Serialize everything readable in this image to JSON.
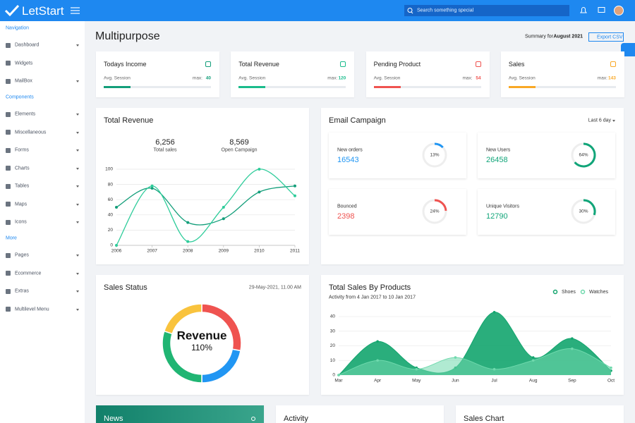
{
  "header": {
    "brand": "LetStart",
    "search_placeholder": "Search something special"
  },
  "sidebar": [
    {
      "heading": "Navigation",
      "items": [
        {
          "label": "Dashboard",
          "submenu": true
        },
        {
          "label": "Widgets",
          "submenu": false
        },
        {
          "label": "MailBox",
          "submenu": true
        }
      ]
    },
    {
      "heading": "Components",
      "items": [
        {
          "label": "Elements",
          "submenu": true
        },
        {
          "label": "Miscellaneous",
          "submenu": true
        },
        {
          "label": "Forms",
          "submenu": true
        },
        {
          "label": "Charts",
          "submenu": true
        },
        {
          "label": "Tables",
          "submenu": true
        },
        {
          "label": "Maps",
          "submenu": true
        },
        {
          "label": "Icons",
          "submenu": true
        }
      ]
    },
    {
      "heading": "More",
      "items": [
        {
          "label": "Pages",
          "submenu": true
        },
        {
          "label": "Ecommerce",
          "submenu": true
        },
        {
          "label": "Extras",
          "submenu": true
        },
        {
          "label": "Multilevel Menu",
          "submenu": true
        }
      ]
    }
  ],
  "page": {
    "title": "Multipurpose",
    "summary": "Summary for",
    "summary_period": "August 2021",
    "export": "Export CSV"
  },
  "stat_cards": [
    {
      "title": "Todays Income",
      "label": "Avg. Session",
      "max_label": "max:",
      "max": 40,
      "progress": 25,
      "color": "#139e7a"
    },
    {
      "title": "Total Revenue",
      "label": "Avg. Session",
      "max_label": "max:",
      "max": 120,
      "progress": 25,
      "color": "#1abc8c"
    },
    {
      "title": "Pending Product",
      "label": "Avg. Session",
      "max_label": "max:",
      "max": 54,
      "progress": 25,
      "color": "#ef5350"
    },
    {
      "title": "Sales",
      "label": "Avg. Session",
      "max_label": "max:",
      "max": 143,
      "progress": 25,
      "color": "#f9a825"
    }
  ],
  "revenue_chart": {
    "type": "line",
    "title": "Total Revenue",
    "totals": [
      {
        "value": "6,256",
        "label": "Total sales"
      },
      {
        "value": "8,569",
        "label": "Open Campaign"
      }
    ],
    "x": [
      2006,
      2007,
      2008,
      2009,
      2010,
      2011
    ],
    "xlim": [
      2006,
      2011
    ],
    "xticks": [
      2006,
      2007,
      2008,
      2009,
      2010,
      2011
    ],
    "ylim": [
      0,
      100
    ],
    "yticks": [
      0,
      20,
      40,
      60,
      80,
      100
    ],
    "grid": true,
    "series": [
      {
        "color": "#139e7a",
        "values": [
          50,
          75,
          30,
          35,
          70,
          78
        ]
      },
      {
        "color": "#2ecc9a",
        "values": [
          0,
          78,
          5,
          50,
          100,
          65
        ]
      }
    ]
  },
  "email_campaign": {
    "title": "Email Campaign",
    "filter": "Last 6 day",
    "cards": [
      {
        "label": "New orders",
        "value": 16543,
        "percent": 13,
        "percent_label": "13%",
        "color": "#2196f3"
      },
      {
        "label": "New Users",
        "value": 26458,
        "percent": 64,
        "percent_label": "64%",
        "color": "#11a579"
      },
      {
        "label": "Bounced",
        "value": 2398,
        "percent": 24,
        "percent_label": "24%",
        "color": "#ef5350"
      },
      {
        "label": "Unique Visitors",
        "value": 12790,
        "percent": 30,
        "percent_label": "30%",
        "color": "#11a579"
      }
    ]
  },
  "sales_status": {
    "type": "donut",
    "title": "Sales Status",
    "date": "29-May-2021, 11.00 AM",
    "center_title": "Revenue",
    "center_value": "110%",
    "values": [
      28,
      22,
      30,
      20
    ],
    "colors": [
      "#ef5350",
      "#2196f3",
      "#20b573",
      "#f9c33d"
    ]
  },
  "sales_chart": {
    "type": "area",
    "title": "Total Sales By Products",
    "subtitle": "Activity from 4 Jan 2017 to 10 Jan 2017",
    "categories": [
      "Mar",
      "Apr",
      "May",
      "Jun",
      "Jul",
      "Aug",
      "Sep",
      "Oct"
    ],
    "ylim": [
      0,
      45
    ],
    "yticks": [
      0,
      10,
      20,
      30,
      40
    ],
    "grid": true,
    "series": [
      {
        "name": "Shoes",
        "color": "#13a56e",
        "values": [
          0,
          23,
          5,
          5,
          43,
          12,
          25,
          3
        ]
      },
      {
        "name": "Watches",
        "color": "#6fd9ad",
        "values": [
          0,
          10,
          4,
          12,
          4,
          10,
          18,
          5
        ]
      }
    ]
  },
  "bottom_cards": [
    {
      "title": "News"
    },
    {
      "title": "Activity"
    },
    {
      "title": "Sales Chart"
    }
  ]
}
